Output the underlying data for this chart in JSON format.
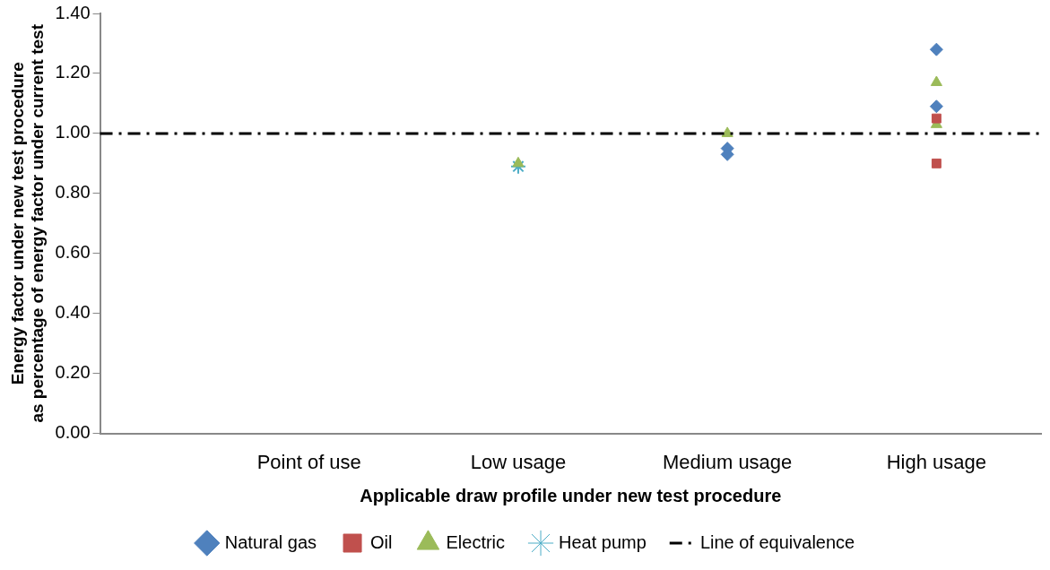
{
  "chart_data": {
    "type": "scatter",
    "xlabel": "Applicable draw profile under new test procedure",
    "ylabel": "Energy factor under new test procedure as percentage of energy factor under current test",
    "categories": [
      null,
      "Point of use",
      "Low usage",
      "Medium usage",
      "High usage"
    ],
    "ylim": [
      0,
      1.4
    ],
    "yticks": [
      {
        "value": 0,
        "label": "0.00"
      },
      {
        "value": 0.2,
        "label": "0.20"
      },
      {
        "value": 0.4,
        "label": "0.40"
      },
      {
        "value": 0.6,
        "label": "0.60"
      },
      {
        "value": 0.8,
        "label": "0.80"
      },
      {
        "value": 1,
        "label": "1.00"
      },
      {
        "value": 1.2,
        "label": "1.20"
      },
      {
        "value": 1.4,
        "label": "1.40"
      }
    ],
    "grid": false,
    "legend": "bottom",
    "series": [
      {
        "name": "Natural gas",
        "color": "#4f81bd",
        "marker": "diamond",
        "x": [
          "Medium usage",
          "Medium usage",
          "High usage",
          "High usage"
        ],
        "values": [
          0.95,
          0.93,
          1.28,
          1.09
        ]
      },
      {
        "name": "Oil",
        "color": "#c0504d",
        "marker": "square",
        "x": [
          "High usage",
          "High usage"
        ],
        "values": [
          1.05,
          0.9
        ]
      },
      {
        "name": "Electric",
        "color": "#9bbb59",
        "marker": "triangle",
        "x": [
          "Low usage",
          "Medium usage",
          "High usage",
          "High usage"
        ],
        "values": [
          0.9,
          1.0,
          1.17,
          1.03
        ]
      },
      {
        "name": "Heat pump",
        "color": "#4bacc6",
        "marker": "cross",
        "x": [
          "Low usage"
        ],
        "values": [
          0.89
        ]
      }
    ],
    "ref_lines": [
      {
        "axis": "y",
        "value": 1,
        "label": "Line of equivalence",
        "color": "#000000",
        "line_style": "dashed"
      }
    ]
  }
}
